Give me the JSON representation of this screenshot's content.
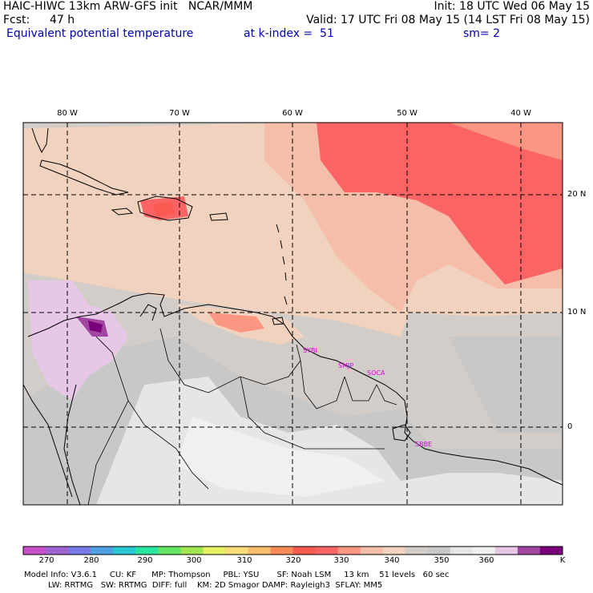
{
  "header": {
    "line1_left": "HAIC-HIWC 13km ARW-GFS init   NCAR/MMM",
    "line1_right": "Init: 18 UTC Wed 06 May 15",
    "fcst_label": "Fcst:",
    "fcst_value": "47 h",
    "valid": "Valid: 17 UTC Fri 08 May 15 (14 LST Fri 08 May 15)",
    "field": "Equivalent potential temperature",
    "level": "at k-index =  51",
    "smoothing": "sm= 2"
  },
  "map": {
    "lon_ticks": [
      "80 W",
      "70 W",
      "60 W",
      "50 W",
      "40 W"
    ],
    "lat_ticks": [
      "20 N",
      "10 N",
      "0"
    ],
    "stations": [
      "SYBI",
      "SMJP",
      "SOCA",
      "SBBE"
    ]
  },
  "colorbar": {
    "colors": [
      "#c850c8",
      "#a064d2",
      "#7878e6",
      "#50a0e6",
      "#28c8d2",
      "#28e6a0",
      "#64e664",
      "#a0e650",
      "#e6f064",
      "#fadc78",
      "#fabe6e",
      "#fa8c5a",
      "#fa5a50",
      "#fa6464",
      "#fa9682",
      "#f5beaa",
      "#f0d2be",
      "#d2cdc8",
      "#c8c8c8",
      "#e6e6e6",
      "#f0f0f0",
      "#e6c8e6",
      "#a046a0",
      "#7a007a"
    ],
    "labels": [
      "270",
      "280",
      "290",
      "300",
      "310",
      "320",
      "330",
      "340",
      "350",
      "360"
    ],
    "unit": "K"
  },
  "footer": {
    "line1": "Model Info: V3.6.1     CU: KF      MP: Thompson     PBL: YSU       SF: Noah LSM     13 km    51 levels   60 sec",
    "line2": "LW: RRTMG   SW: RRTMG  DIFF: full    KM: 2D Smagor DAMP: Rayleigh3  SFLAY: MM5"
  }
}
